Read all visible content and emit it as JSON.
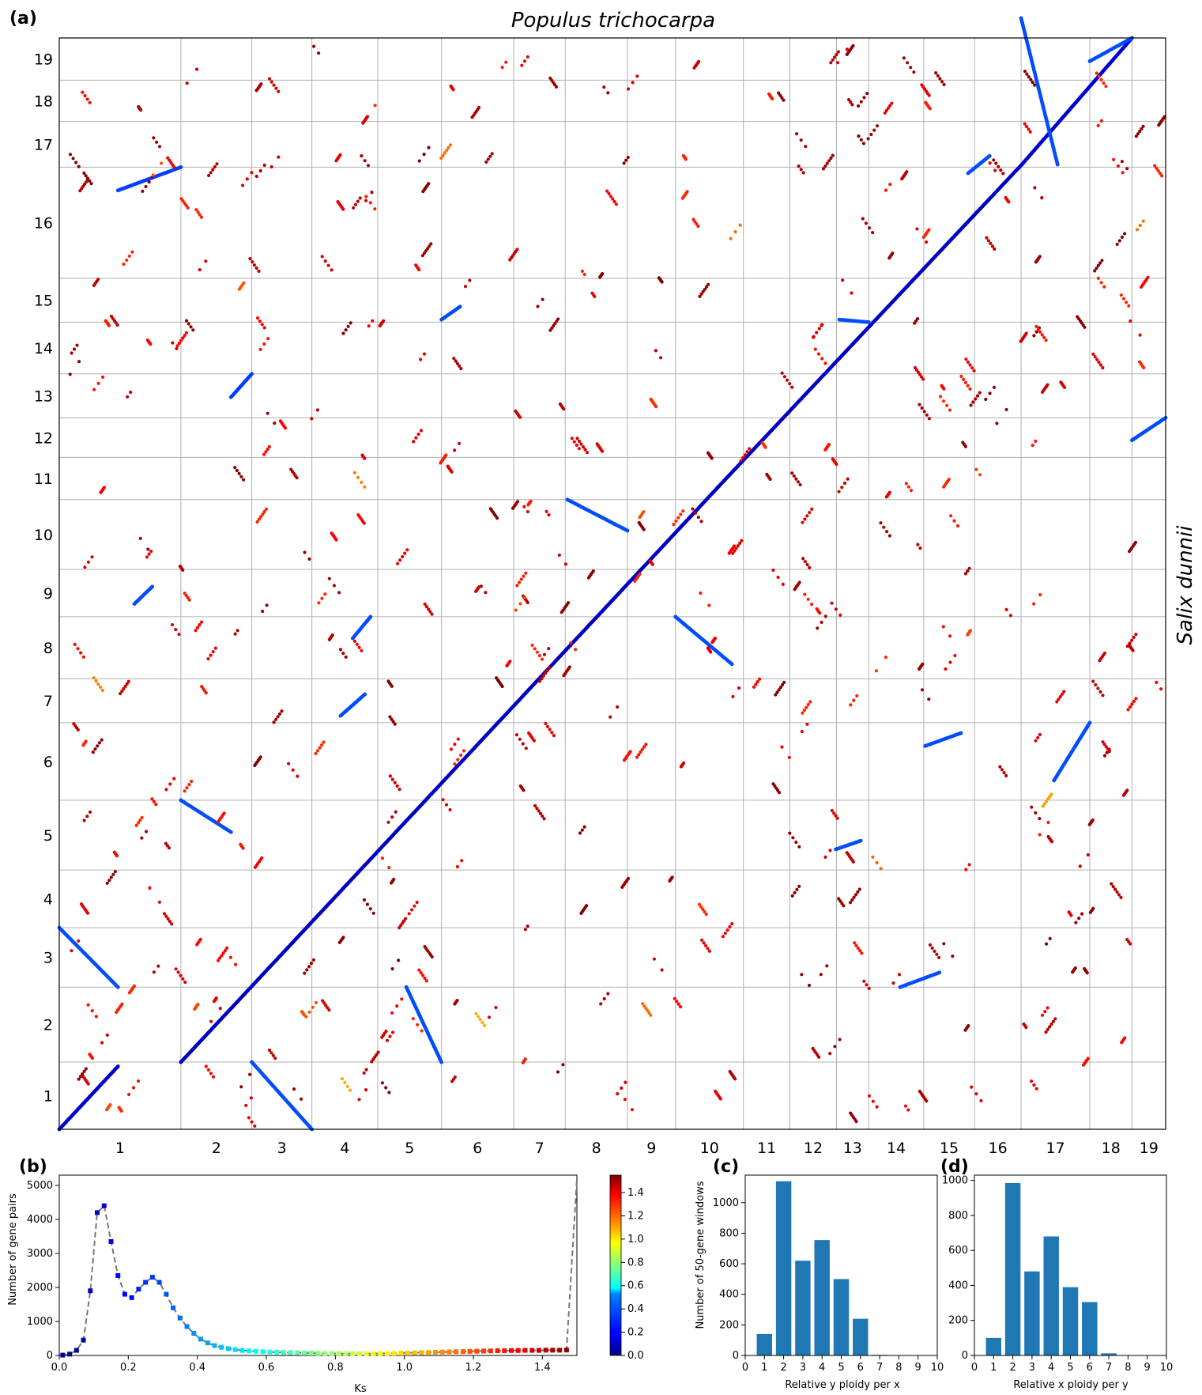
{
  "chart_data": [
    {
      "panel": "(a)",
      "type": "scatter",
      "title": "Populus trichocarpa",
      "xlabel": "",
      "ylabel": "Salix dunnii",
      "x_chromosomes": [
        "1",
        "2",
        "3",
        "4",
        "5",
        "6",
        "7",
        "8",
        "9",
        "10",
        "11",
        "12",
        "13",
        "14",
        "15",
        "16",
        "17",
        "18",
        "19"
      ],
      "y_chromosomes": [
        "1",
        "2",
        "3",
        "4",
        "5",
        "6",
        "7",
        "8",
        "9",
        "10",
        "11",
        "12",
        "13",
        "14",
        "15",
        "16",
        "17",
        "18",
        "19"
      ],
      "x_boundaries": [
        0,
        1.7,
        2.69,
        3.53,
        4.45,
        5.34,
        6.35,
        7.07,
        7.94,
        8.61,
        9.56,
        10.21,
        10.86,
        11.31,
        12.08,
        12.79,
        13.44,
        14.4,
        14.99,
        15.46
      ],
      "y_boundaries": [
        0,
        0.78,
        1.65,
        2.34,
        3.01,
        3.82,
        4.72,
        5.23,
        5.95,
        6.5,
        7.31,
        7.8,
        8.26,
        8.77,
        9.37,
        9.88,
        11.17,
        11.7,
        12.18,
        12.67
      ],
      "ks_note": "point color encodes Ks (jet colormap, 0–1.5)",
      "segments": [
        {
          "x0": 0,
          "y0": 0,
          "x1": 0.82,
          "y1": 0.73,
          "ks": 0.12
        },
        {
          "x0": 1.7,
          "y0": 0.78,
          "x1": 9.2,
          "y1": 7.45,
          "ks": 0.1
        },
        {
          "x0": 9.2,
          "y0": 7.45,
          "x1": 13.45,
          "y1": 11.2,
          "ks": 0.1
        },
        {
          "x0": 13.45,
          "y0": 11.2,
          "x1": 14.99,
          "y1": 12.67,
          "ks": 0.12
        },
        {
          "x0": 0.82,
          "y0": 10.9,
          "x1": 1.7,
          "y1": 11.17,
          "ks": 0.28
        },
        {
          "x0": 0,
          "y0": 2.34,
          "x1": 0.82,
          "y1": 1.65,
          "ks": 0.3
        },
        {
          "x0": 2.69,
          "y0": 0.78,
          "x1": 3.53,
          "y1": 0.0,
          "ks": 0.3
        },
        {
          "x0": 1.7,
          "y0": 3.82,
          "x1": 2.4,
          "y1": 3.45,
          "ks": 0.3
        },
        {
          "x0": 2.4,
          "y0": 8.5,
          "x1": 2.69,
          "y1": 8.77,
          "ks": 0.28
        },
        {
          "x0": 4.85,
          "y0": 1.65,
          "x1": 5.34,
          "y1": 0.78,
          "ks": 0.3
        },
        {
          "x0": 7.1,
          "y0": 7.31,
          "x1": 7.94,
          "y1": 6.95,
          "ks": 0.3
        },
        {
          "x0": 8.61,
          "y0": 5.95,
          "x1": 9.4,
          "y1": 5.4,
          "ks": 0.3
        },
        {
          "x0": 10.9,
          "y0": 9.4,
          "x1": 11.31,
          "y1": 9.37,
          "ks": 0.3
        },
        {
          "x0": 12.1,
          "y0": 4.45,
          "x1": 12.6,
          "y1": 4.6,
          "ks": 0.3
        },
        {
          "x0": 12.7,
          "y0": 11.1,
          "x1": 13.0,
          "y1": 11.3,
          "ks": 0.3
        },
        {
          "x0": 13.44,
          "y0": 12.9,
          "x1": 13.95,
          "y1": 11.2,
          "ks": 0.3
        },
        {
          "x0": 14.4,
          "y0": 12.4,
          "x1": 14.99,
          "y1": 12.67,
          "ks": 0.3
        },
        {
          "x0": 14.99,
          "y0": 8.0,
          "x1": 15.46,
          "y1": 8.26,
          "ks": 0.3
        },
        {
          "x0": 5.34,
          "y0": 9.4,
          "x1": 5.6,
          "y1": 9.55,
          "ks": 0.3
        },
        {
          "x0": 3.93,
          "y0": 4.8,
          "x1": 4.27,
          "y1": 5.05,
          "ks": 0.3
        },
        {
          "x0": 1.05,
          "y0": 6.1,
          "x1": 1.3,
          "y1": 6.3,
          "ks": 0.3
        },
        {
          "x0": 4.1,
          "y0": 5.7,
          "x1": 4.35,
          "y1": 5.95,
          "ks": 0.3
        },
        {
          "x0": 10.85,
          "y0": 3.25,
          "x1": 11.2,
          "y1": 3.35,
          "ks": 0.3
        },
        {
          "x0": 11.75,
          "y0": 1.65,
          "x1": 12.3,
          "y1": 1.82,
          "ks": 0.3
        },
        {
          "x0": 13.9,
          "y0": 4.05,
          "x1": 14.4,
          "y1": 4.72,
          "ks": 0.3
        }
      ]
    },
    {
      "panel": "(b)",
      "type": "line",
      "xlabel": "Ks",
      "ylabel": "Number of gene pairs",
      "xlim": [
        0,
        1.5
      ],
      "ylim": [
        0,
        5300
      ],
      "xticks": [
        "0.0",
        "0.2",
        "0.4",
        "0.6",
        "0.8",
        "1.0",
        "1.2",
        "1.4"
      ],
      "yticks": [
        "0",
        "1000",
        "2000",
        "3000",
        "4000",
        "5000"
      ],
      "colorbar_ticks": [
        "0.0",
        "0.2",
        "0.4",
        "0.6",
        "0.8",
        "1.0",
        "1.2",
        "1.4"
      ],
      "x": [
        0.01,
        0.03,
        0.05,
        0.07,
        0.09,
        0.11,
        0.13,
        0.15,
        0.17,
        0.19,
        0.21,
        0.23,
        0.25,
        0.27,
        0.29,
        0.31,
        0.33,
        0.35,
        0.37,
        0.39,
        0.41,
        0.43,
        0.45,
        0.47,
        0.49,
        0.51,
        0.53,
        0.55,
        0.57,
        0.59,
        0.61,
        0.63,
        0.65,
        0.67,
        0.69,
        0.71,
        0.73,
        0.75,
        0.77,
        0.79,
        0.81,
        0.83,
        0.85,
        0.87,
        0.89,
        0.91,
        0.93,
        0.95,
        0.97,
        0.99,
        1.01,
        1.03,
        1.05,
        1.07,
        1.09,
        1.11,
        1.13,
        1.15,
        1.17,
        1.19,
        1.21,
        1.23,
        1.25,
        1.27,
        1.29,
        1.31,
        1.33,
        1.35,
        1.37,
        1.39,
        1.41,
        1.43,
        1.45,
        1.47,
        1.5
      ],
      "y": [
        10,
        40,
        150,
        450,
        1900,
        4200,
        4400,
        3350,
        2350,
        1800,
        1700,
        1950,
        2150,
        2300,
        2150,
        1800,
        1400,
        1100,
        850,
        650,
        480,
        370,
        290,
        240,
        200,
        170,
        150,
        135,
        120,
        110,
        100,
        95,
        90,
        85,
        80,
        75,
        70,
        65,
        60,
        60,
        55,
        55,
        55,
        55,
        55,
        55,
        60,
        60,
        65,
        70,
        75,
        80,
        85,
        90,
        95,
        100,
        105,
        110,
        115,
        120,
        125,
        130,
        135,
        140,
        140,
        145,
        145,
        150,
        150,
        150,
        155,
        155,
        155,
        160,
        5200
      ]
    },
    {
      "panel": "(c)",
      "type": "bar",
      "xlabel": "Relative y ploidy per x",
      "ylabel": "Number of 50-gene windows",
      "xlim": [
        0,
        10
      ],
      "ylim": [
        0,
        1180
      ],
      "xticks": [
        "0",
        "1",
        "2",
        "3",
        "4",
        "5",
        "6",
        "7",
        "8",
        "9",
        "10"
      ],
      "yticks": [
        "0",
        "200",
        "400",
        "600",
        "800",
        "1000"
      ],
      "categories": [
        1,
        2,
        3,
        4,
        5,
        6,
        7
      ],
      "values": [
        140,
        1140,
        620,
        755,
        500,
        240,
        4
      ]
    },
    {
      "panel": "(d)",
      "type": "bar",
      "xlabel": "Relative x ploidy per y",
      "ylabel": "",
      "xlim": [
        0,
        10
      ],
      "ylim": [
        0,
        1030
      ],
      "xticks": [
        "0",
        "1",
        "2",
        "3",
        "4",
        "5",
        "6",
        "7",
        "8",
        "9",
        "10"
      ],
      "yticks": [
        "0",
        "200",
        "400",
        "600",
        "800",
        "1000"
      ],
      "categories": [
        1,
        2,
        3,
        4,
        5,
        6,
        7
      ],
      "values": [
        100,
        985,
        480,
        680,
        390,
        305,
        12
      ]
    }
  ]
}
